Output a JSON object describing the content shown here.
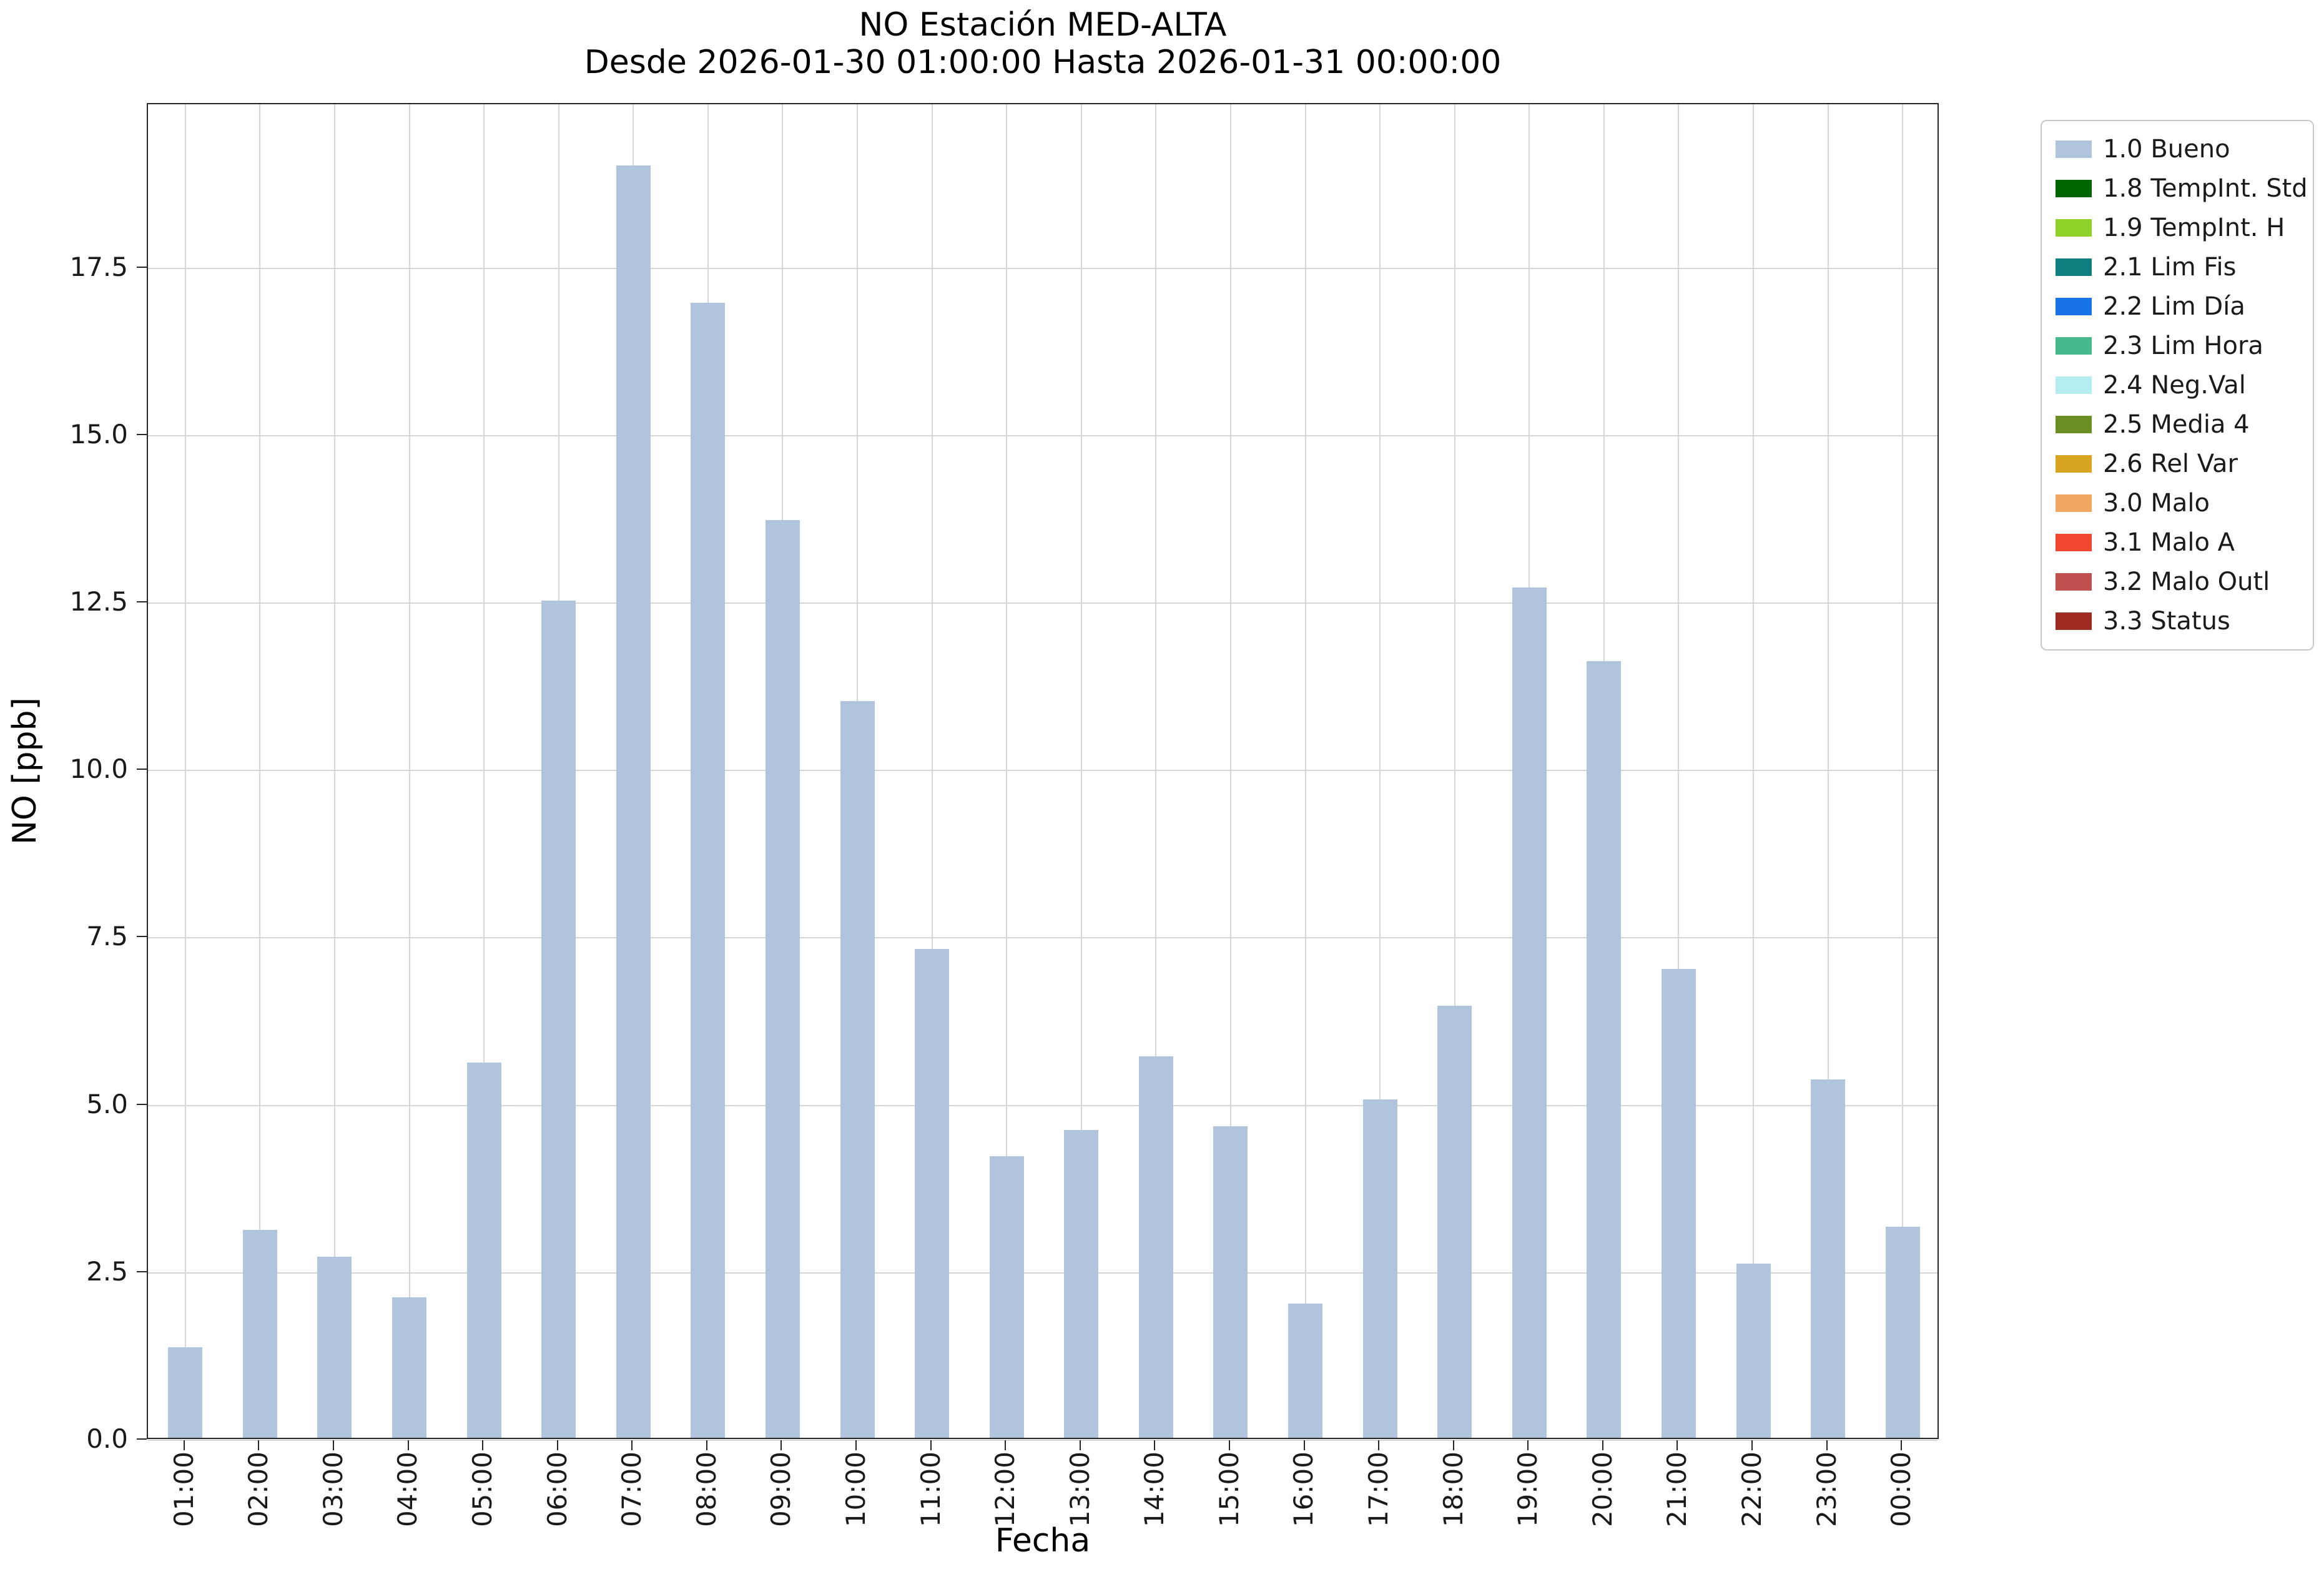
{
  "title": {
    "line1": "NO Estación MED-ALTA",
    "line2": "Desde 2026-01-30 01:00:00 Hasta 2026-01-31 00:00:00"
  },
  "chart_data": {
    "type": "bar",
    "title": "NO Estación MED-ALTA",
    "subtitle": "Desde 2026-01-30 01:00:00 Hasta 2026-01-31 00:00:00",
    "xlabel": "Fecha",
    "ylabel": "NO [ppb]",
    "categories": [
      "01:00",
      "02:00",
      "03:00",
      "04:00",
      "05:00",
      "06:00",
      "07:00",
      "08:00",
      "09:00",
      "10:00",
      "11:00",
      "12:00",
      "13:00",
      "14:00",
      "15:00",
      "16:00",
      "17:00",
      "18:00",
      "19:00",
      "20:00",
      "21:00",
      "22:00",
      "23:00",
      "00:00"
    ],
    "values": [
      1.35,
      3.1,
      2.7,
      2.1,
      5.6,
      12.5,
      19.0,
      16.95,
      13.7,
      11.0,
      7.3,
      4.2,
      4.6,
      5.7,
      4.65,
      2.0,
      5.05,
      6.45,
      12.7,
      11.6,
      7.0,
      2.6,
      5.35,
      3.15
    ],
    "yticks": [
      0.0,
      2.5,
      5.0,
      7.5,
      10.0,
      12.5,
      15.0,
      17.5
    ],
    "ylim": [
      0,
      19.95
    ],
    "grid": true,
    "bar_color": "#b0c4de",
    "legend": {
      "position": "outside-right",
      "entries": [
        {
          "label": "1.0 Bueno",
          "color": "#b0c4de"
        },
        {
          "label": "1.8 TempInt. Std",
          "color": "#006400"
        },
        {
          "label": "1.9 TempInt. H",
          "color": "#8fd32a"
        },
        {
          "label": "2.1 Lim Fis",
          "color": "#0e8080"
        },
        {
          "label": "2.2 Lim Día",
          "color": "#1873e8"
        },
        {
          "label": "2.3 Lim Hora",
          "color": "#46b98c"
        },
        {
          "label": "2.4 Neg.Val",
          "color": "#b5eef0"
        },
        {
          "label": "2.5 Media 4",
          "color": "#6b8e23"
        },
        {
          "label": "2.6 Rel Var",
          "color": "#d9a520"
        },
        {
          "label": "3.0 Malo",
          "color": "#f2a760"
        },
        {
          "label": "3.1 Malo A",
          "color": "#f1472e"
        },
        {
          "label": "3.2 Malo Outl",
          "color": "#c04f4f"
        },
        {
          "label": "3.3 Status",
          "color": "#9e2b22"
        }
      ]
    }
  }
}
